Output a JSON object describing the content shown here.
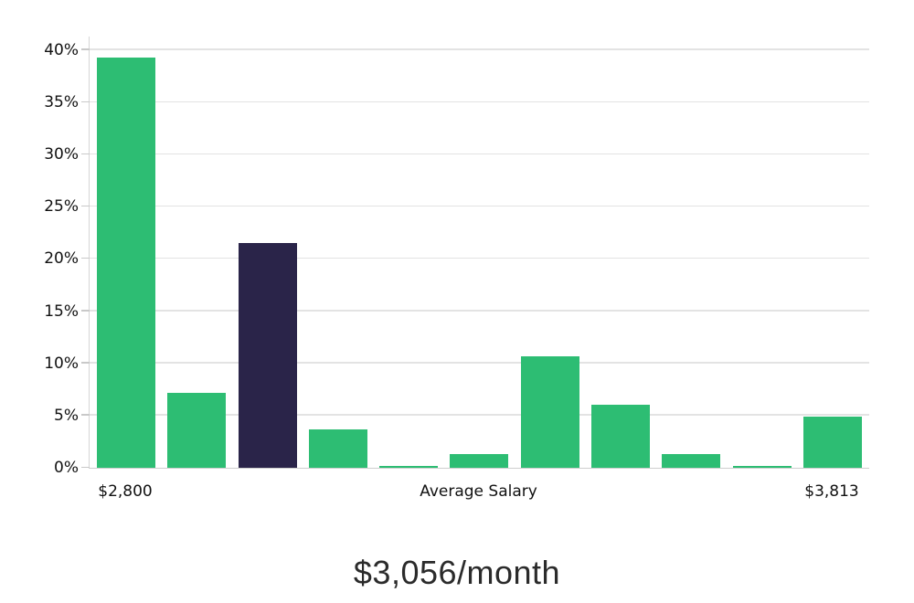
{
  "chart_data": {
    "type": "bar",
    "title": "$3,056/month",
    "xlabel": "",
    "ylabel": "",
    "values": [
      39.3,
      7.2,
      21.5,
      3.7,
      0.15,
      1.3,
      10.7,
      6.0,
      1.3,
      0.15,
      4.9
    ],
    "highlight_index": 2,
    "bar_color": "#2dbd73",
    "highlight_color": "#2a2449",
    "yticks": [
      0,
      5,
      10,
      15,
      20,
      25,
      30,
      35,
      40
    ],
    "ytick_suffix": "%",
    "ylim": [
      0,
      41.3
    ],
    "grid": "horizontal-only",
    "legend": "none",
    "xtick_labels": {
      "min": "$2,800",
      "center": "Average Salary",
      "max": "$3,813"
    }
  }
}
